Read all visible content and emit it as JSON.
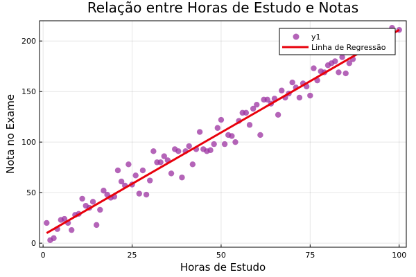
{
  "chart_data": {
    "type": "scatter",
    "title": "Relação entre Horas de Estudo e Notas",
    "xlabel": "Horas de Estudo",
    "ylabel": "Nota no Exame",
    "xlim": [
      -1,
      102
    ],
    "ylim": [
      -4,
      220
    ],
    "x_ticks": [
      0,
      25,
      50,
      75,
      100
    ],
    "y_ticks": [
      0,
      50,
      100,
      150,
      200
    ],
    "grid": true,
    "legend_position": "top-right",
    "series": [
      {
        "name": "y1",
        "kind": "scatter",
        "color": "#9b30a0",
        "x": [
          1,
          2,
          3,
          4,
          5,
          6,
          7,
          8,
          9,
          10,
          11,
          12,
          13,
          14,
          15,
          16,
          17,
          18,
          19,
          20,
          21,
          22,
          23,
          24,
          25,
          26,
          27,
          28,
          29,
          30,
          31,
          32,
          33,
          34,
          35,
          36,
          37,
          38,
          39,
          40,
          41,
          42,
          43,
          44,
          45,
          46,
          47,
          48,
          49,
          50,
          51,
          52,
          53,
          54,
          55,
          56,
          57,
          58,
          59,
          60,
          61,
          62,
          63,
          64,
          65,
          66,
          67,
          68,
          69,
          70,
          71,
          72,
          73,
          74,
          75,
          76,
          77,
          78,
          79,
          80,
          81,
          82,
          83,
          84,
          85,
          86,
          87,
          98,
          100
        ],
        "y": [
          20,
          3,
          5,
          14,
          23,
          24,
          20,
          13,
          28,
          29,
          44,
          37,
          35,
          41,
          18,
          33,
          52,
          48,
          45,
          46,
          72,
          61,
          57,
          78,
          58,
          67,
          49,
          72,
          48,
          62,
          91,
          80,
          80,
          86,
          82,
          69,
          93,
          91,
          65,
          91,
          96,
          78,
          93,
          110,
          93,
          91,
          92,
          98,
          114,
          122,
          98,
          107,
          106,
          100,
          121,
          129,
          129,
          117,
          133,
          137,
          107,
          142,
          142,
          138,
          143,
          127,
          151,
          144,
          148,
          159,
          154,
          144,
          158,
          155,
          146,
          173,
          161,
          170,
          169,
          176,
          178,
          180,
          169,
          184,
          168,
          178,
          182,
          213,
          211
        ]
      },
      {
        "name": "Linha de Regressão",
        "kind": "line",
        "color": "#e8000b",
        "x": [
          1,
          100
        ],
        "y": [
          10,
          211
        ]
      }
    ]
  }
}
